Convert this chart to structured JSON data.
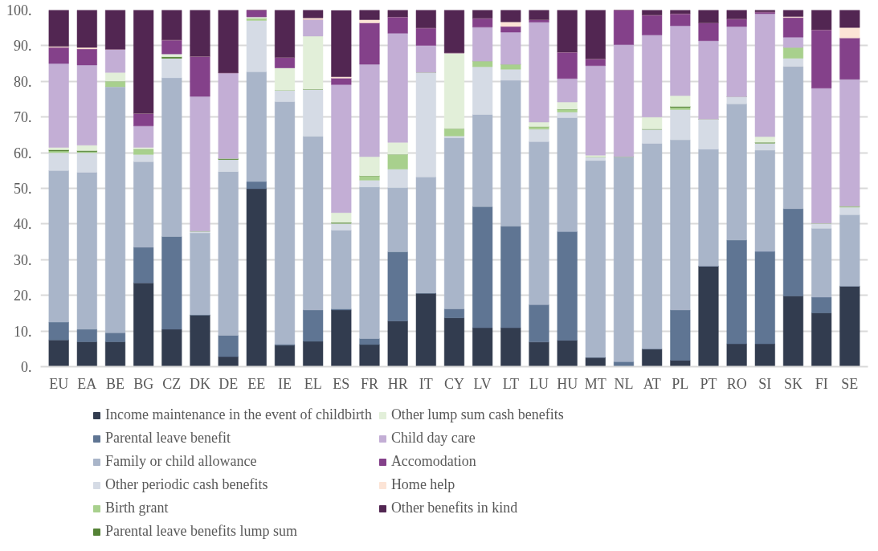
{
  "chart_data": {
    "type": "bar",
    "stacked": true,
    "categories": [
      "EU",
      "EA",
      "BE",
      "BG",
      "CZ",
      "DK",
      "DE",
      "EE",
      "IE",
      "EL",
      "ES",
      "FR",
      "HR",
      "IT",
      "CY",
      "LV",
      "LT",
      "LU",
      "HU",
      "MT",
      "NL",
      "AT",
      "PL",
      "PT",
      "RO",
      "SI",
      "SK",
      "FI",
      "SE"
    ],
    "ylim": [
      0,
      100
    ],
    "yticks": [
      {
        "value": 0,
        "label": "0."
      },
      {
        "value": 10,
        "label": "10."
      },
      {
        "value": 20,
        "label": "20."
      },
      {
        "value": 30,
        "label": "30."
      },
      {
        "value": 40,
        "label": "40."
      },
      {
        "value": 50,
        "label": "50."
      },
      {
        "value": 60,
        "label": "60."
      },
      {
        "value": 70,
        "label": "70."
      },
      {
        "value": 80,
        "label": "80."
      },
      {
        "value": 90,
        "label": "90."
      },
      {
        "value": 100,
        "label": "100."
      }
    ],
    "grid": "y",
    "legend": "bottom",
    "series": [
      {
        "name": "Income maintenance in the event of childbirth",
        "color": "#323c4f",
        "values": [
          7.5,
          7,
          7,
          23.5,
          10.5,
          14.5,
          2.8,
          49.9,
          6,
          7.1,
          15.9,
          6.2,
          12.8,
          20.6,
          13.7,
          10.9,
          10.9,
          6.9,
          7.4,
          2.6,
          0,
          5,
          1.8,
          28.2,
          6.4,
          6.4,
          19.8,
          15.1,
          22.6
        ]
      },
      {
        "name": "Parental leave benefit",
        "color": "#5f7593",
        "values": [
          5,
          3.5,
          2.5,
          10,
          26,
          0,
          6,
          2,
          0.3,
          8.8,
          0.3,
          1.7,
          19.4,
          0,
          2.5,
          34,
          28.5,
          10.5,
          30.5,
          0,
          1.4,
          0,
          14.1,
          0,
          29.1,
          25.9,
          24.5,
          4.4,
          0
        ]
      },
      {
        "name": "Family or child allowance",
        "color": "#a9b5c9",
        "values": [
          42.5,
          44,
          69,
          24,
          44.5,
          23,
          45.9,
          30.8,
          68,
          48.7,
          22.1,
          42.5,
          18,
          32.6,
          48,
          25.8,
          40.9,
          45.7,
          31.9,
          55.2,
          57.5,
          57.6,
          47.7,
          32.8,
          38.2,
          28.4,
          39.9,
          19.3,
          20
        ]
      },
      {
        "name": "Other periodic cash benefits",
        "color": "#d5dbe5",
        "values": [
          5,
          5.5,
          0,
          2,
          5.5,
          0.5,
          3.4,
          14.4,
          3.2,
          13.2,
          1.9,
          1.9,
          5.2,
          29.3,
          0.5,
          13.4,
          3.1,
          3.5,
          1.6,
          1,
          0,
          4,
          8.5,
          8.4,
          2,
          2,
          2.3,
          1.4,
          2.1
        ]
      },
      {
        "name": "Birth grant",
        "color": "#a8d08d",
        "values": [
          0.5,
          0.3,
          1.5,
          1.5,
          0,
          0,
          0,
          0.5,
          0,
          0,
          0,
          1.2,
          4.1,
          0,
          2,
          1.6,
          1.4,
          0.7,
          0.8,
          0,
          0,
          0,
          0.6,
          0,
          0,
          0,
          3,
          0,
          0.3
        ]
      },
      {
        "name": "Parental leave benefits lump sum",
        "color": "#548235",
        "values": [
          0.3,
          0.3,
          0,
          0,
          0.4,
          0,
          0.3,
          0,
          0,
          0,
          0.2,
          0,
          0,
          0,
          0,
          0,
          0,
          0,
          0,
          0,
          0,
          0,
          0.3,
          0,
          0,
          0.2,
          0,
          0,
          0
        ]
      },
      {
        "name": "Other lump sum cash benefits",
        "color": "#e2efd9",
        "values": [
          0.7,
          1.5,
          2.5,
          0.5,
          0.8,
          0,
          0,
          0.5,
          6.3,
          14.9,
          2.8,
          5.4,
          3.4,
          0,
          21.3,
          0,
          0,
          1.3,
          2,
          0.5,
          0,
          3.4,
          3,
          0,
          0,
          1.6,
          0,
          0,
          0
        ]
      },
      {
        "name": "Child day care",
        "color": "#c3aed5",
        "values": [
          23.5,
          22.5,
          6.5,
          6,
          0,
          37.8,
          24,
          0,
          0,
          4.6,
          35.9,
          25.9,
          30.6,
          7.6,
          0,
          9.5,
          9,
          28,
          6.6,
          25.1,
          31.4,
          23,
          19.6,
          22,
          19.7,
          34.5,
          2.9,
          37.9,
          35.6
        ]
      },
      {
        "name": "Accomodation",
        "color": "#84418a",
        "values": [
          4.5,
          4.5,
          0,
          3.5,
          3.9,
          11.2,
          0,
          1.9,
          2.9,
          0,
          1.8,
          11.6,
          4.6,
          4.9,
          0,
          2.5,
          1.6,
          0.7,
          7.4,
          1.9,
          9.7,
          5.6,
          3.4,
          5,
          2.1,
          0.5,
          5.5,
          16.4,
          11.6
        ]
      },
      {
        "name": "Home help",
        "color": "#fce4d6",
        "values": [
          0.3,
          0.4,
          0,
          0,
          0,
          0,
          0,
          0,
          0,
          0.5,
          0.4,
          0.9,
          0,
          0,
          0,
          0,
          1.3,
          0,
          0,
          0,
          0,
          0,
          0,
          0,
          0,
          0,
          0.3,
          0,
          2.9
        ]
      },
      {
        "name": "Other benefits in kind",
        "color": "#522652",
        "values": [
          10.2,
          10.7,
          11,
          29,
          8.4,
          13,
          17.6,
          0,
          13.3,
          2.2,
          18.6,
          2.7,
          1.9,
          5,
          12,
          2.3,
          3.3,
          2.7,
          11.8,
          13.7,
          0,
          1.4,
          1,
          3.6,
          2.5,
          0.5,
          1.8,
          5.5,
          4.9
        ]
      }
    ]
  }
}
